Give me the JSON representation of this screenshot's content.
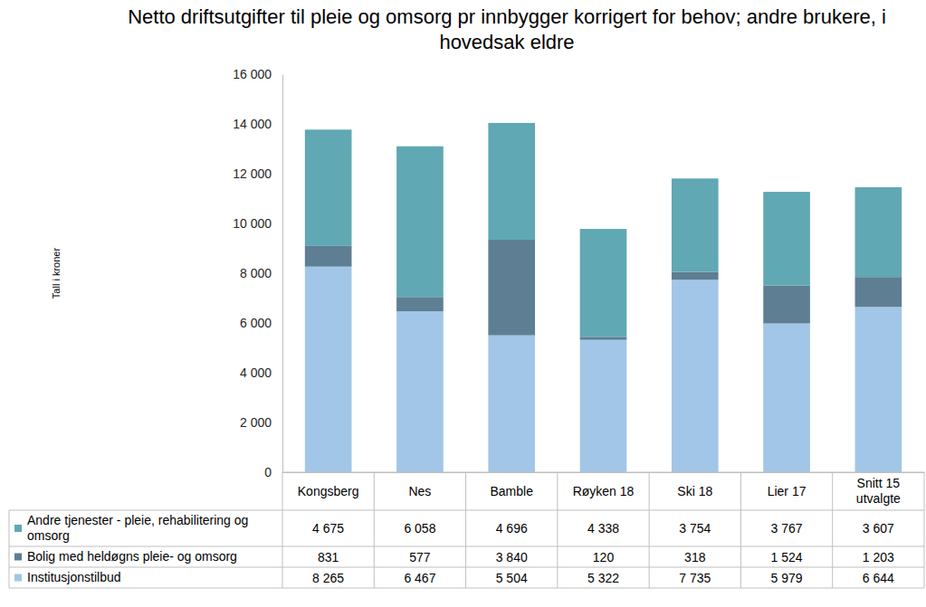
{
  "chart_data": {
    "type": "bar",
    "stacked": true,
    "grid": false,
    "title": "Netto driftsutgifter til pleie og omsorg pr innbygger korrigert for behov; andre brukere, i hovedsak eldre",
    "y_label": "Tall i kroner",
    "categories": [
      "Kongsberg",
      "Nes",
      "Bamble",
      "Røyken 18",
      "Ski 18",
      "Lier 17",
      "Snitt 15 utvalgte"
    ],
    "series": [
      {
        "name": "Institusjonstilbud",
        "color": "#A1C6E7",
        "values": [
          8265,
          6467,
          5504,
          5322,
          7735,
          5979,
          6644
        ],
        "value_labels": [
          "8 265",
          "6 467",
          "5 504",
          "5 322",
          "7 735",
          "5 979",
          "6 644"
        ]
      },
      {
        "name": "Bolig med heldøgns pleie- og omsorg",
        "color": "#5E7E93",
        "values": [
          831,
          577,
          3840,
          120,
          318,
          1524,
          1203
        ],
        "value_labels": [
          "831",
          "577",
          "3 840",
          "120",
          "318",
          "1 524",
          "1 203"
        ]
      },
      {
        "name": "Andre tjenester - pleie, rehabilitering og omsorg",
        "color": "#60A8B3",
        "values": [
          4675,
          6058,
          4696,
          4338,
          3754,
          3767,
          3607
        ],
        "value_labels": [
          "4 675",
          "6 058",
          "4 696",
          "4 338",
          "3 754",
          "3 767",
          "3 607"
        ]
      }
    ],
    "ylim": [
      0,
      16000
    ],
    "yticks": [
      0,
      {
        "value": 2000,
        "label": "2 000"
      },
      {
        "value": 4000,
        "label": "4 000"
      },
      {
        "value": 6000,
        "label": "6 000"
      },
      {
        "value": 8000,
        "label": "8 000"
      },
      {
        "value": 10000,
        "label": "10 000"
      },
      {
        "value": 12000,
        "label": "12 000"
      },
      {
        "value": 14000,
        "label": "14 000"
      },
      {
        "value": 16000,
        "label": "16 000"
      }
    ]
  }
}
